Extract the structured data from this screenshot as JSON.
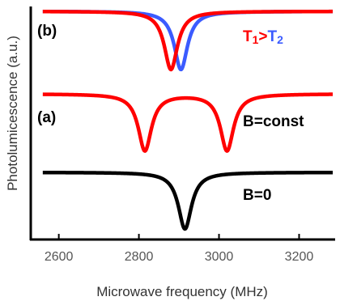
{
  "chart_data": {
    "type": "line",
    "xlabel": "Microwave frequency (MHz)",
    "ylabel": "Photolumicescence (a.u.)",
    "xlim": [
      2530,
      3290
    ],
    "x_ticks": [
      "2600",
      "2800",
      "3000",
      "3200"
    ],
    "x_tick_values": [
      2600,
      2800,
      3000,
      3200
    ],
    "grid": false,
    "colors": {
      "red": "#ff0000",
      "blue": "#3b5bff",
      "black": "#000000",
      "axis": "#000000"
    },
    "panels": [
      {
        "label": "(b)",
        "annotation": {
          "parts": [
            {
              "text": "T",
              "color": "#ff0000"
            },
            {
              "text": "1",
              "color": "#ff0000",
              "sub": true
            },
            {
              "text": ">",
              "color": "#ff0000"
            },
            {
              "text": "T",
              "color": "#3b5bff"
            },
            {
              "text": "2",
              "color": "#3b5bff",
              "sub": true
            }
          ]
        },
        "series": [
          {
            "color": "#3b5bff",
            "dips": [
              {
                "center": 2905,
                "depth": 1.0,
                "width": 20
              }
            ]
          },
          {
            "color": "#ff0000",
            "dips": [
              {
                "center": 2880,
                "depth": 1.0,
                "width": 20
              }
            ]
          }
        ]
      },
      {
        "label": "(a)",
        "annotation": {
          "parts": [
            {
              "text": "B=const",
              "color": "#000000"
            }
          ]
        },
        "series": [
          {
            "color": "#ff0000",
            "dips": [
              {
                "center": 2815,
                "depth": 1.0,
                "width": 20
              },
              {
                "center": 3020,
                "depth": 1.0,
                "width": 20
              }
            ]
          }
        ]
      },
      {
        "label": "",
        "annotation": {
          "parts": [
            {
              "text": "B=0",
              "color": "#000000"
            }
          ]
        },
        "series": [
          {
            "color": "#000000",
            "dips": [
              {
                "center": 2915,
                "depth": 1.0,
                "width": 20
              }
            ]
          }
        ]
      }
    ]
  }
}
